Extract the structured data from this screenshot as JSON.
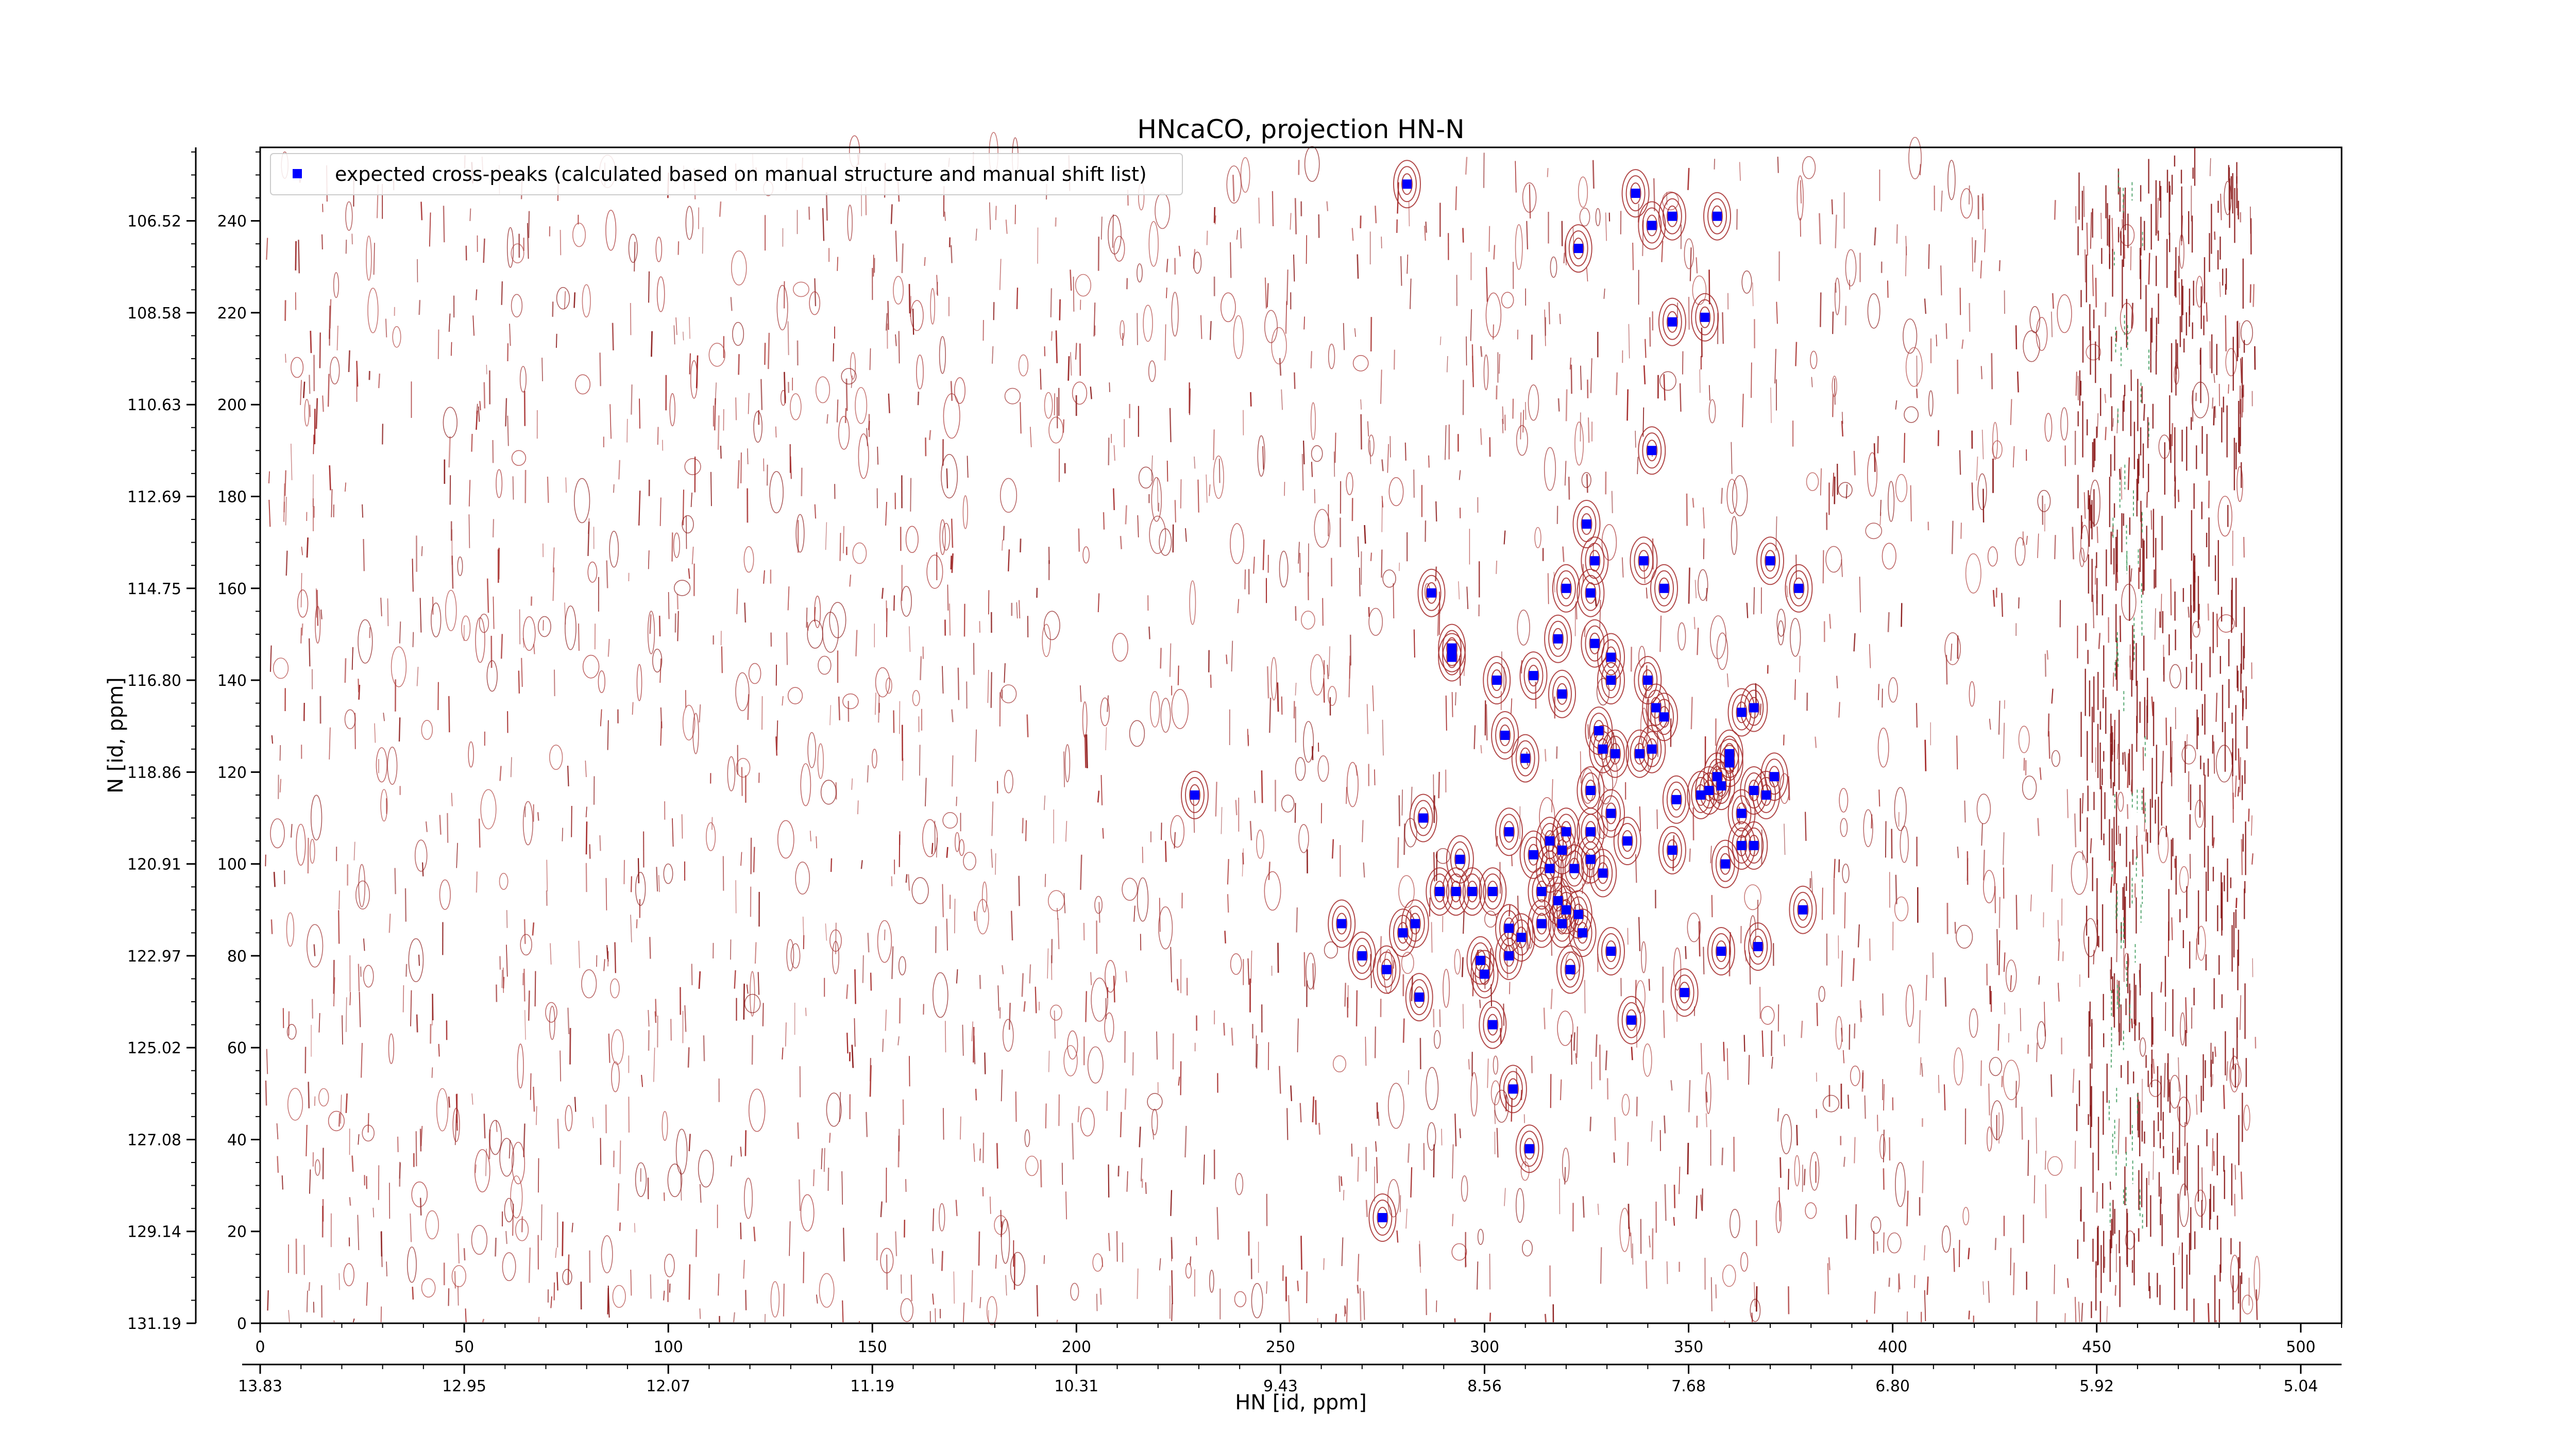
{
  "chart_data": {
    "type": "scatter",
    "title": "HNcaCO, projection HN-N",
    "xlabel": "HN [id, ppm]",
    "ylabel": "N [id, ppm]",
    "xlim": [
      0,
      510
    ],
    "ylim": [
      0,
      256
    ],
    "x_ticks": [
      0,
      50,
      100,
      150,
      200,
      250,
      300,
      350,
      400,
      450,
      500
    ],
    "x_ppm_ticks": [
      {
        "pos": 0,
        "label": "13.83"
      },
      {
        "pos": 50,
        "label": "12.95"
      },
      {
        "pos": 100,
        "label": "12.07"
      },
      {
        "pos": 150,
        "label": "11.19"
      },
      {
        "pos": 200,
        "label": "10.31"
      },
      {
        "pos": 250,
        "label": "9.43"
      },
      {
        "pos": 300,
        "label": "8.56"
      },
      {
        "pos": 350,
        "label": "7.68"
      },
      {
        "pos": 400,
        "label": "6.80"
      },
      {
        "pos": 450,
        "label": "5.92"
      },
      {
        "pos": 500,
        "label": "5.04"
      }
    ],
    "y_ticks": [
      0,
      20,
      40,
      60,
      80,
      100,
      120,
      140,
      160,
      180,
      200,
      220,
      240
    ],
    "y_ppm_ticks": [
      {
        "pos": 0,
        "label": "131.19"
      },
      {
        "pos": 20,
        "label": "129.14"
      },
      {
        "pos": 40,
        "label": "127.08"
      },
      {
        "pos": 60,
        "label": "125.02"
      },
      {
        "pos": 80,
        "label": "122.97"
      },
      {
        "pos": 100,
        "label": "120.91"
      },
      {
        "pos": 120,
        "label": "118.86"
      },
      {
        "pos": 140,
        "label": "116.80"
      },
      {
        "pos": 160,
        "label": "114.75"
      },
      {
        "pos": 180,
        "label": "112.69"
      },
      {
        "pos": 200,
        "label": "110.63"
      },
      {
        "pos": 220,
        "label": "108.58"
      },
      {
        "pos": 240,
        "label": "106.52"
      }
    ],
    "legend": {
      "placement": "top-left",
      "label": "expected cross-peaks (calculated based on manual structure and manual shift list)"
    },
    "series": [
      {
        "name": "expected cross-peaks (calculated based on manual structure and manual shift list)",
        "color": "#0000ff",
        "marker": "square",
        "points": [
          [
            281,
            248
          ],
          [
            337,
            246
          ],
          [
            346,
            241
          ],
          [
            357,
            241
          ],
          [
            341,
            239
          ],
          [
            323,
            234
          ],
          [
            346,
            218
          ],
          [
            354,
            219
          ],
          [
            341,
            190
          ],
          [
            325,
            174
          ],
          [
            339,
            166
          ],
          [
            327,
            166
          ],
          [
            370,
            166
          ],
          [
            320,
            160
          ],
          [
            326,
            159
          ],
          [
            287,
            159
          ],
          [
            344,
            160
          ],
          [
            377,
            160
          ],
          [
            318,
            149
          ],
          [
            327,
            148
          ],
          [
            292,
            147
          ],
          [
            292,
            145
          ],
          [
            331,
            145
          ],
          [
            303,
            140
          ],
          [
            312,
            141
          ],
          [
            340,
            140
          ],
          [
            319,
            137
          ],
          [
            331,
            140
          ],
          [
            342,
            134
          ],
          [
            363,
            133
          ],
          [
            366,
            134
          ],
          [
            305,
            128
          ],
          [
            328,
            129
          ],
          [
            344,
            132
          ],
          [
            329,
            125
          ],
          [
            332,
            124
          ],
          [
            338,
            124
          ],
          [
            341,
            125
          ],
          [
            360,
            124
          ],
          [
            360,
            122
          ],
          [
            310,
            123
          ],
          [
            326,
            116
          ],
          [
            371,
            119
          ],
          [
            357,
            119
          ],
          [
            358,
            117
          ],
          [
            366,
            116
          ],
          [
            369,
            115
          ],
          [
            353,
            115
          ],
          [
            355,
            116
          ],
          [
            347,
            114
          ],
          [
            363,
            111
          ],
          [
            331,
            111
          ],
          [
            285,
            110
          ],
          [
            320,
            107
          ],
          [
            306,
            107
          ],
          [
            316,
            105
          ],
          [
            326,
            107
          ],
          [
            335,
            105
          ],
          [
            346,
            103
          ],
          [
            363,
            104
          ],
          [
            366,
            104
          ],
          [
            319,
            103
          ],
          [
            312,
            102
          ],
          [
            326,
            101
          ],
          [
            294,
            101
          ],
          [
            316,
            99
          ],
          [
            322,
            99
          ],
          [
            329,
            98
          ],
          [
            359,
            100
          ],
          [
            302,
            94
          ],
          [
            289,
            94
          ],
          [
            293,
            94
          ],
          [
            297,
            94
          ],
          [
            314,
            94
          ],
          [
            318,
            92
          ],
          [
            320,
            90
          ],
          [
            323,
            89
          ],
          [
            306,
            86
          ],
          [
            314,
            87
          ],
          [
            319,
            87
          ],
          [
            324,
            85
          ],
          [
            378,
            90
          ],
          [
            265,
            87
          ],
          [
            283,
            87
          ],
          [
            280,
            85
          ],
          [
            309,
            84
          ],
          [
            270,
            80
          ],
          [
            306,
            80
          ],
          [
            331,
            81
          ],
          [
            299,
            79
          ],
          [
            358,
            81
          ],
          [
            367,
            82
          ],
          [
            276,
            77
          ],
          [
            321,
            77
          ],
          [
            300,
            76
          ],
          [
            349,
            72
          ],
          [
            284,
            71
          ],
          [
            336,
            66
          ],
          [
            302,
            65
          ],
          [
            307,
            51
          ],
          [
            311,
            38
          ],
          [
            229,
            115
          ],
          [
            275,
            23
          ]
        ]
      }
    ]
  }
}
